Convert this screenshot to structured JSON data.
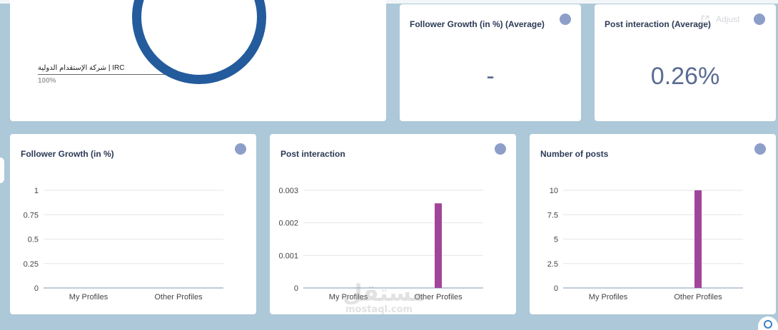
{
  "colors": {
    "page_background": "#adc8d8",
    "card": "#ffffff",
    "title": "#2c3a56",
    "dot": "#8d9fc9",
    "kpi_value": "#5a6c93"
  },
  "icons": {
    "adjust": "open-in-new-icon",
    "floating_button": "search-icon",
    "widget_menu": "dot-icon"
  },
  "kpi_cards": [
    {
      "title": "Follower Growth (in %) (Average)",
      "value": "-"
    },
    {
      "title": "Post interaction (Average)",
      "value": "0.26%",
      "adjust_label": "Adjust"
    }
  ],
  "watermark": {
    "arabic": "مستقل",
    "latin": "mostaql.com"
  },
  "chart_data": [
    {
      "type": "pie",
      "donut": true,
      "labels": [
        "شركة الإستقدام الدولية | IRC"
      ],
      "values": [
        100
      ],
      "value_labels": [
        "100%"
      ],
      "colors": [
        "#245b9c"
      ],
      "legend": "left"
    },
    {
      "type": "bar",
      "title": "Follower Growth (in %)",
      "categories": [
        "My Profiles",
        "Other Profiles"
      ],
      "values": [
        0,
        0
      ],
      "ylim": [
        0,
        1
      ],
      "yticks": [
        0,
        0.25,
        0.5,
        0.75,
        1
      ],
      "color": "#a1459b",
      "grid": true
    },
    {
      "type": "bar",
      "title": "Post interaction",
      "categories": [
        "My Profiles",
        "Other Profiles"
      ],
      "values": [
        0,
        0.0026
      ],
      "ylim": [
        0,
        0.003
      ],
      "yticks": [
        0,
        0.001,
        0.002,
        0.003
      ],
      "color": "#a1459b",
      "grid": true
    },
    {
      "type": "bar",
      "title": "Number of posts",
      "categories": [
        "My Profiles",
        "Other Profiles"
      ],
      "values": [
        0,
        10
      ],
      "ylim": [
        0,
        10
      ],
      "yticks": [
        0,
        2.5,
        5,
        7.5,
        10
      ],
      "color": "#a1459b",
      "grid": true
    }
  ]
}
